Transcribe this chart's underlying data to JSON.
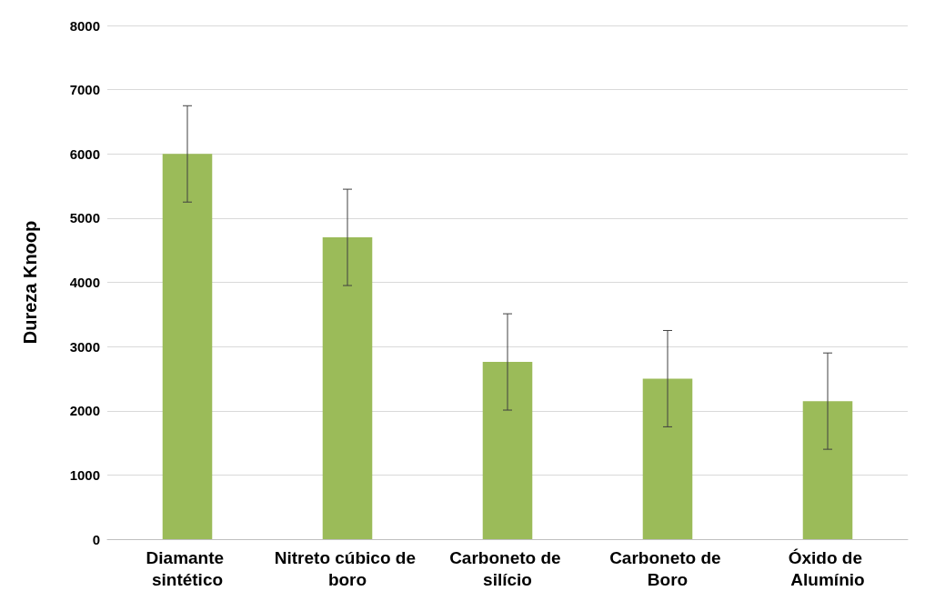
{
  "chart_data": {
    "type": "bar",
    "ylabel": "Dureza Knoop",
    "categories": [
      "Diamante sintético",
      "Nitreto cúbico de boro",
      "Carboneto de silício",
      "Carboneto de Boro",
      "Óxido de Alumínio"
    ],
    "values": [
      6000,
      4700,
      2760,
      2500,
      2150
    ],
    "errors": [
      750,
      750,
      750,
      750,
      750
    ],
    "color": "#9bbb59",
    "ylim": [
      0,
      8000
    ],
    "yticks": [
      0,
      1000,
      2000,
      3000,
      4000,
      5000,
      6000,
      7000,
      8000
    ],
    "grid": "y"
  }
}
